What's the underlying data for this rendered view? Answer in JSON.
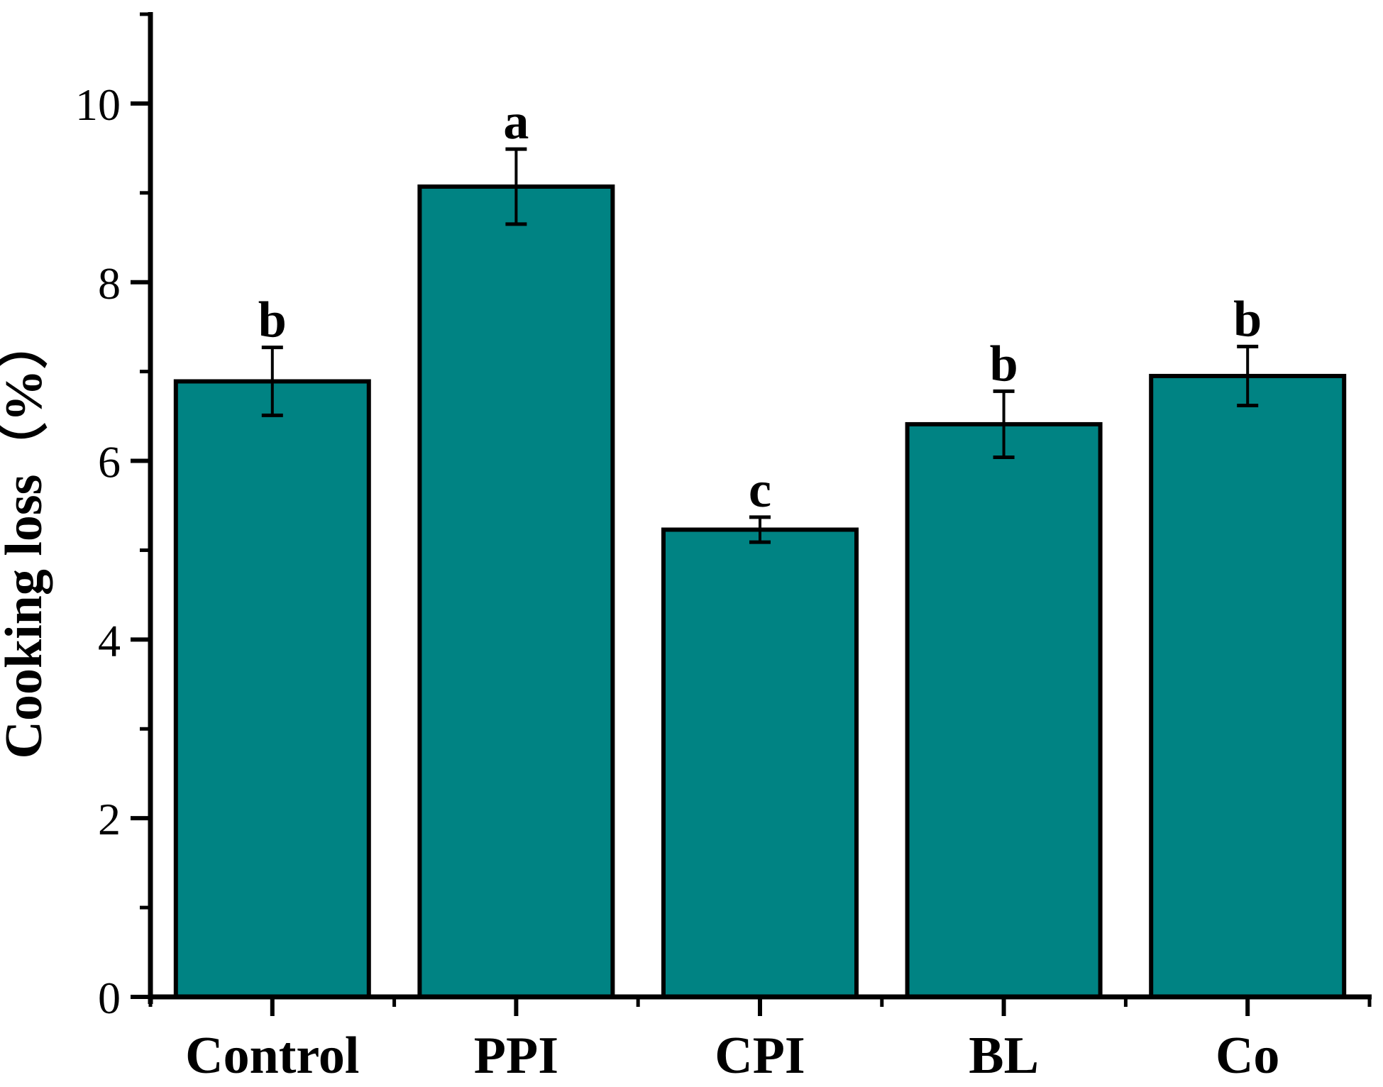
{
  "chart_data": {
    "type": "bar",
    "title": "",
    "xlabel": "",
    "ylabel": "Cooking loss（%）",
    "categories": [
      "Control",
      "PPI",
      "CPI",
      "BL",
      "Co"
    ],
    "values": [
      6.89,
      9.07,
      5.23,
      6.41,
      6.95
    ],
    "errors": [
      0.38,
      0.42,
      0.14,
      0.37,
      0.33
    ],
    "sig_letters": [
      "b",
      "a",
      "c",
      "b",
      "b"
    ],
    "ylim": [
      0,
      11
    ],
    "yticks_major": [
      0,
      2,
      4,
      6,
      8,
      10
    ],
    "ytick_labels": [
      "0",
      "2",
      "4",
      "6",
      "8",
      "10"
    ],
    "yticks_minor": [
      1,
      3,
      5,
      7,
      9,
      11
    ],
    "grid": false,
    "legend": "none",
    "bar_color": "#008383",
    "bar_border_color": "#000000",
    "axis_color": "#000000",
    "error_bar_color": "#000000",
    "background_color": "#ffffff"
  }
}
